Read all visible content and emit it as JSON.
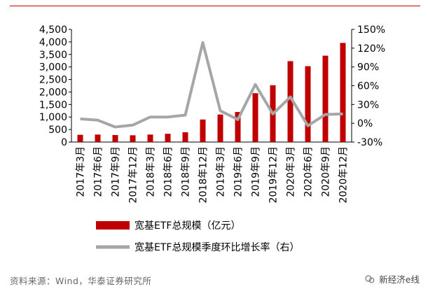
{
  "chart_data": {
    "type": "bar+line",
    "categories": [
      "2017年3月",
      "2017年6月",
      "2017年9月",
      "2017年12月",
      "2018年3月",
      "2018年6月",
      "2018年9月",
      "2018年12月",
      "2019年3月",
      "2019年6月",
      "2019年9月",
      "2019年12月",
      "2020年3月",
      "2020年6月",
      "2020年9月",
      "2020年12月"
    ],
    "series": [
      {
        "name": "宽基ETF总规模（亿元）",
        "type": "bar",
        "axis": "left",
        "color": "#c00000",
        "values": [
          290,
          300,
          280,
          270,
          300,
          330,
          390,
          900,
          1100,
          1200,
          1950,
          2270,
          3230,
          3030,
          3450,
          3960
        ]
      },
      {
        "name": "宽基ETF总规模季度环比增长率（右）",
        "type": "line",
        "axis": "right",
        "color": "#a6a6a6",
        "values": [
          0.07,
          0.05,
          -0.06,
          -0.03,
          0.1,
          0.1,
          0.13,
          1.29,
          0.2,
          0.06,
          0.62,
          0.15,
          0.42,
          -0.04,
          0.14,
          0.15
        ]
      }
    ],
    "y_left": {
      "min": 0,
      "max": 4500,
      "ticks": [
        0,
        500,
        1000,
        1500,
        2000,
        2500,
        3000,
        3500,
        4000,
        4500
      ],
      "tick_labels": [
        "0",
        "500",
        "1,000",
        "1,500",
        "2,000",
        "2,500",
        "3,000",
        "3,500",
        "4,000",
        "4,500"
      ]
    },
    "y_right": {
      "min": -0.3,
      "max": 1.5,
      "ticks": [
        -0.3,
        0,
        0.3,
        0.6,
        0.9,
        1.2,
        1.5
      ],
      "tick_labels": [
        "-30%",
        "0%",
        "30%",
        "60%",
        "90%",
        "120%",
        "150%"
      ]
    },
    "legend_position": "bottom"
  },
  "footer": {
    "source": "资料来源：Wind，华泰证券研究所",
    "watermark": "新经济e线"
  }
}
